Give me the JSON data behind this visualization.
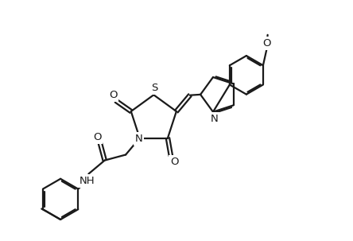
{
  "background_color": "#ffffff",
  "line_color": "#1a1a1a",
  "line_width": 1.6,
  "font_size": 9.5,
  "figsize": [
    4.44,
    3.03
  ],
  "dpi": 100,
  "xlim": [
    0,
    10
  ],
  "ylim": [
    0,
    6.8
  ]
}
